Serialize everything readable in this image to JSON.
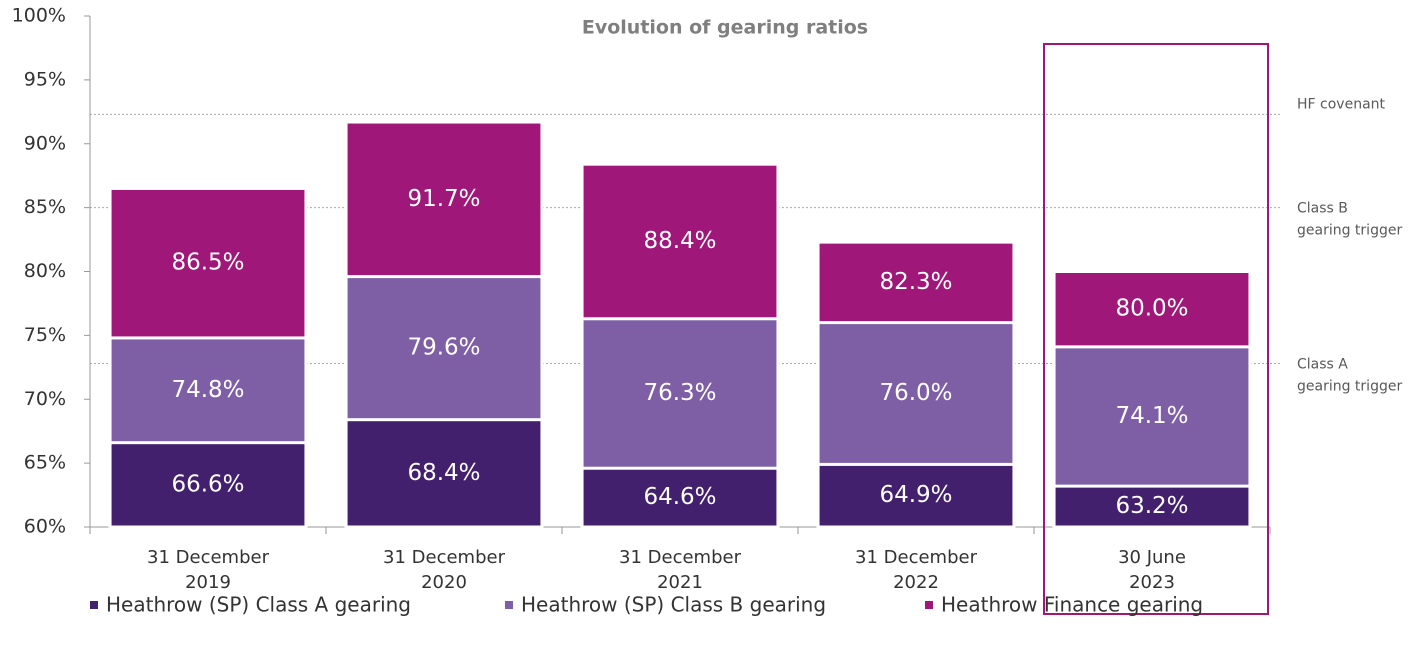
{
  "chart_data": {
    "type": "bar",
    "title": "Evolution of gearing ratios",
    "categories": [
      [
        "31 December",
        "2019"
      ],
      [
        "31 December",
        "2020"
      ],
      [
        "31 December",
        "2021"
      ],
      [
        "31 December",
        "2022"
      ],
      [
        "30 June",
        "2023"
      ]
    ],
    "series": [
      {
        "name": "Heathrow (SP) Class A gearing",
        "color": "#43206e",
        "values": [
          66.6,
          68.4,
          64.6,
          64.9,
          63.2
        ],
        "value_labels": [
          "66.6%",
          "68.4%",
          "64.6%",
          "64.9%",
          "63.2%"
        ]
      },
      {
        "name": "Heathrow (SP) Class B gearing",
        "color": "#7e5fa6",
        "values": [
          74.8,
          79.6,
          76.3,
          76.0,
          74.1
        ],
        "value_labels": [
          "74.8%",
          "79.6%",
          "76.3%",
          "76.0%",
          "74.1%"
        ]
      },
      {
        "name": "Heathrow Finance gearing",
        "color": "#a0177a",
        "values": [
          86.5,
          91.7,
          88.4,
          82.3,
          80.0
        ],
        "value_labels": [
          "86.5%",
          "91.7%",
          "88.4%",
          "82.3%",
          "80.0%"
        ]
      }
    ],
    "ylim": [
      60,
      100
    ],
    "yticks": [
      {
        "value": 60,
        "label": "60%"
      },
      {
        "value": 65,
        "label": "65%"
      },
      {
        "value": 70,
        "label": "70%"
      },
      {
        "value": 75,
        "label": "75%"
      },
      {
        "value": 80,
        "label": "80%"
      },
      {
        "value": 85,
        "label": "85%"
      },
      {
        "value": 90,
        "label": "90%"
      },
      {
        "value": 95,
        "label": "95%"
      },
      {
        "value": 100,
        "label": "100%"
      }
    ],
    "reference_lines": [
      {
        "value": 92.3,
        "label": [
          "HF covenant"
        ]
      },
      {
        "value": 85,
        "label": [
          "Class B",
          "gearing trigger"
        ]
      },
      {
        "value": 72.8,
        "label": [
          "Class A",
          "gearing trigger"
        ]
      }
    ],
    "highlight_category": 4,
    "highlight_color": "#a0177a",
    "legend": "bottom"
  }
}
